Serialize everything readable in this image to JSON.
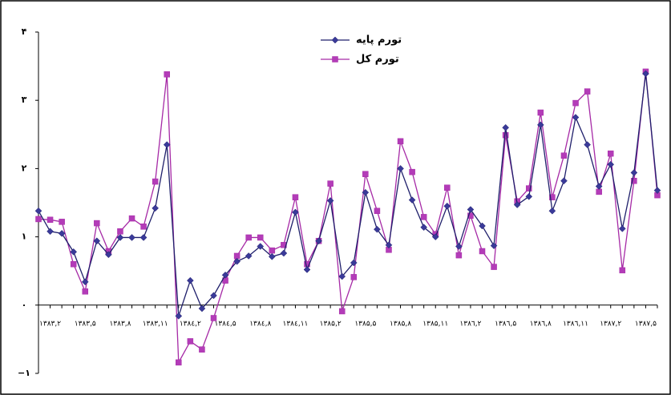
{
  "chart_data": {
    "type": "line",
    "categories": [
      null,
      "۱۳۸۳,۲",
      null,
      null,
      "۱۳۸۳,۵",
      null,
      null,
      "۱۳۸۳,۸",
      null,
      null,
      "۱۳۸۳,۱۱",
      null,
      null,
      "۱۳۸٤,۲",
      null,
      null,
      "۱۳۸٤,۵",
      null,
      null,
      "۱۳۸٤,۸",
      null,
      null,
      "۱۳۸٤,۱۱",
      null,
      null,
      "۱۳۸۵,۲",
      null,
      null,
      "۱۳۸۵,۵",
      null,
      null,
      "۱۳۸۵,۸",
      null,
      null,
      "۱۳۸۵,۱۱",
      null,
      null,
      "۱۳۸٦,۲",
      null,
      null,
      "۱۳۸٦,۵",
      null,
      null,
      "۱۳۸٦,۸",
      null,
      null,
      "۱۳۸٦,۱۱",
      null,
      null,
      "۱۳۸۷,۲",
      null,
      null,
      "۱۳۸۷,۵",
      null
    ],
    "series": [
      {
        "name": "تورم پایه",
        "color": "#1f1f6b",
        "marker_color": "#3a3a99",
        "marker": "diamond",
        "values": [
          1.38,
          1.08,
          1.05,
          0.78,
          0.34,
          0.94,
          0.74,
          0.99,
          0.99,
          0.99,
          1.42,
          2.35,
          -0.16,
          0.36,
          -0.05,
          0.14,
          0.44,
          0.64,
          0.72,
          0.86,
          0.71,
          0.76,
          1.36,
          0.52,
          0.94,
          1.53,
          0.42,
          0.62,
          1.65,
          1.11,
          0.88,
          2.0,
          1.54,
          1.14,
          1.0,
          1.45,
          0.86,
          1.4,
          1.16,
          0.87,
          2.6,
          1.47,
          1.59,
          2.64,
          1.38,
          1.82,
          2.75,
          2.35,
          1.74,
          2.06,
          1.12,
          1.94,
          3.39,
          1.68
        ]
      },
      {
        "name": "تورم کل",
        "color": "#a62aa6",
        "marker_color": "#b33cb8",
        "marker": "square",
        "values": [
          1.26,
          1.25,
          1.22,
          0.6,
          0.2,
          1.2,
          0.79,
          1.08,
          1.27,
          1.15,
          1.81,
          3.38,
          -0.84,
          -0.53,
          -0.65,
          -0.19,
          0.36,
          0.72,
          0.99,
          0.99,
          0.8,
          0.88,
          1.58,
          0.6,
          0.94,
          1.78,
          -0.09,
          0.41,
          1.92,
          1.38,
          0.81,
          2.4,
          1.95,
          1.29,
          1.04,
          1.72,
          0.73,
          1.31,
          0.79,
          0.56,
          2.49,
          1.52,
          1.71,
          2.82,
          1.58,
          2.19,
          2.96,
          3.13,
          1.66,
          2.22,
          0.51,
          1.82,
          3.42,
          1.61
        ]
      }
    ],
    "ylim": [
      -1,
      4
    ],
    "yticks": [
      {
        "value": -1,
        "label": "−۱"
      },
      {
        "value": 0,
        "label": "۰"
      },
      {
        "value": 1,
        "label": "۱"
      },
      {
        "value": 2,
        "label": "۲"
      },
      {
        "value": 3,
        "label": "۳"
      },
      {
        "value": 4,
        "label": "۴"
      }
    ],
    "grid": false
  }
}
